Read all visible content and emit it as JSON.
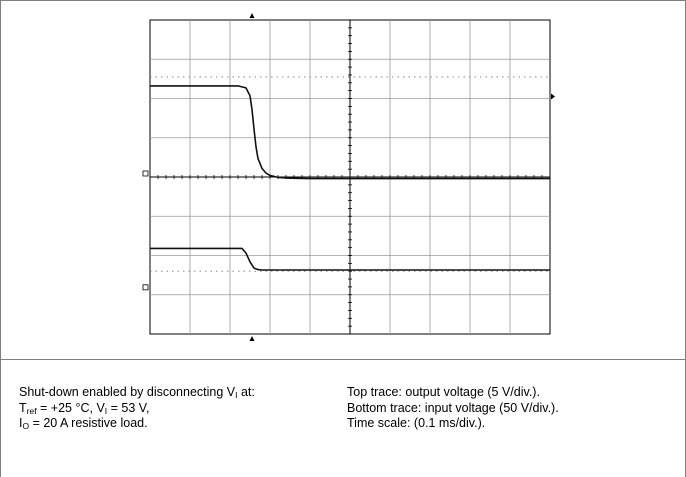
{
  "chart_data": {
    "type": "line",
    "x_unit": "ms",
    "x_range": [
      0,
      1.0
    ],
    "grid": true,
    "series": [
      {
        "trace": "top",
        "x": [
          0,
          0.22,
          0.24,
          0.25,
          0.255,
          0.26,
          0.265,
          0.27,
          0.28,
          0.29,
          0.3,
          0.32,
          0.35,
          0.4,
          1.0
        ],
        "y": [
          0.0,
          0.0,
          -0.05,
          -0.25,
          -0.6,
          -1.1,
          -1.55,
          -1.85,
          -2.1,
          -2.22,
          -2.28,
          -2.33,
          -2.35,
          -2.36,
          -2.36
        ]
      },
      {
        "trace": "bottom",
        "x": [
          0,
          0.23,
          0.24,
          0.25,
          0.26,
          0.27,
          0.28,
          1.0
        ],
        "y": [
          0.0,
          0.0,
          -0.12,
          -0.34,
          -0.5,
          -0.54,
          -0.55,
          -0.55
        ]
      }
    ]
  },
  "caption": {
    "left": {
      "line1": {
        "text": "Shut-down enabled by disconnecting V",
        "sub": "I",
        "after": " at:"
      },
      "line2": {
        "a": "T",
        "a_sub": "ref",
        "b": " = +25 °C, V",
        "b_sub": "I",
        "c": " = 53 V,"
      },
      "line3": {
        "a": "I",
        "a_sub": "O",
        "b": " = 20 A resistive load."
      }
    },
    "right": {
      "line1": "Top trace: output voltage (5 V/div.).",
      "line2": "Bottom trace: input voltage (50 V/div.).",
      "line3": "Time scale: (0.1 ms/div.)."
    }
  }
}
